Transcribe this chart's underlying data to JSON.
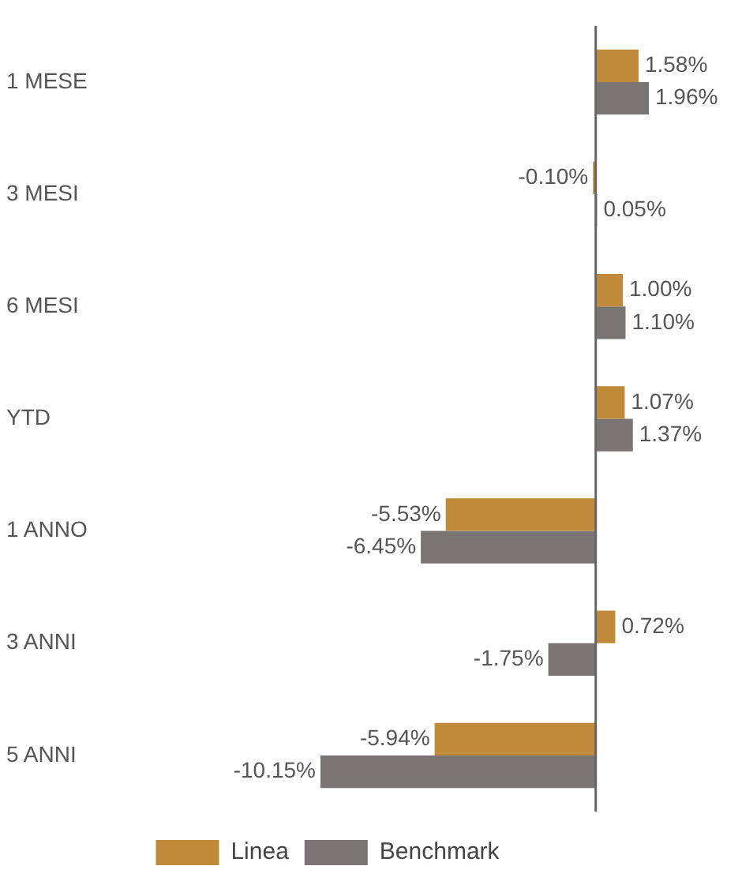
{
  "chart_data": {
    "type": "bar",
    "orientation": "horizontal",
    "categories": [
      "1 MESE",
      "3 MESI",
      "6 MESI",
      "YTD",
      "1 ANNO",
      "3 ANNI",
      "5 ANNI"
    ],
    "series": [
      {
        "name": "Linea",
        "color": "#c08a3a",
        "values": [
          1.58,
          -0.1,
          1.0,
          1.07,
          -5.53,
          0.72,
          -5.94
        ],
        "value_labels": [
          "1.58%",
          "-0.10%",
          "1.00%",
          "1.07%",
          "-5.53%",
          "0.72%",
          "-5.94%"
        ]
      },
      {
        "name": "Benchmark",
        "color": "#7a7574",
        "values": [
          1.96,
          0.05,
          1.1,
          1.37,
          -6.45,
          -1.75,
          -10.15
        ],
        "value_labels": [
          "1.96%",
          "0.05%",
          "1.10%",
          "1.37%",
          "-6.45%",
          "-1.75%",
          "-10.15%"
        ]
      }
    ],
    "legend": "bottom",
    "grid": false,
    "tick_labels": "y"
  }
}
